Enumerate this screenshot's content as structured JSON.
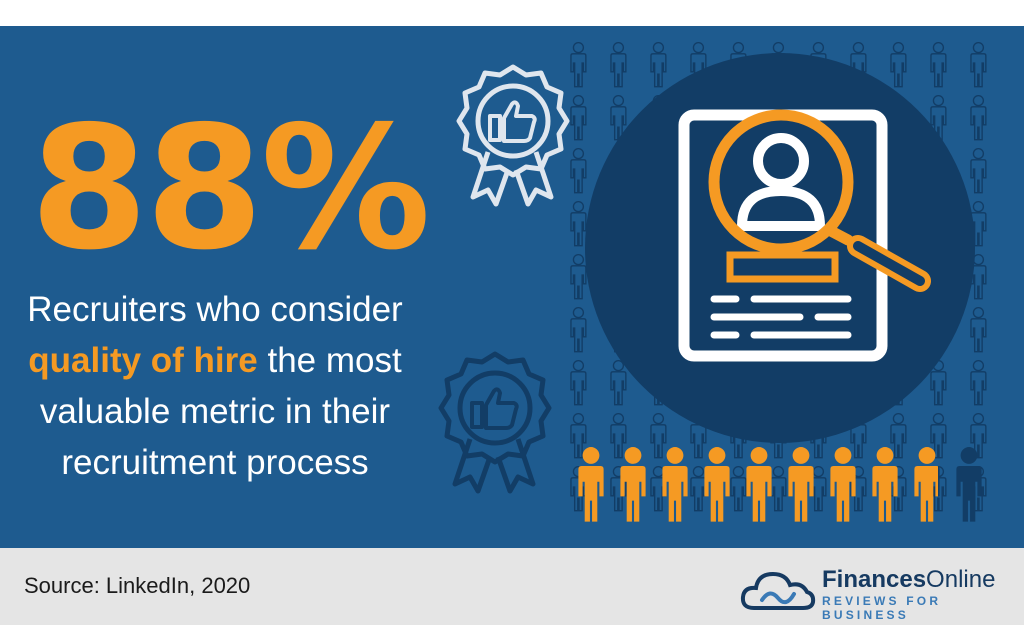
{
  "stat": {
    "value": "88%"
  },
  "description": {
    "line1": "Recruiters who consider",
    "highlight": "quality of hire",
    "line2_rest": " the most",
    "line3": "valuable metric in their",
    "line4": "recruitment process"
  },
  "people_row": {
    "highlighted_fraction": 0.88
  },
  "source": {
    "text": "Source: LinkedIn, 2020"
  },
  "logo": {
    "name_bold": "Finances",
    "name_regular": "Online",
    "tagline": "REVIEWS FOR BUSINESS"
  },
  "colors": {
    "background": "#1e5b8f",
    "accent": "#f59a23",
    "dark": "#123d66",
    "footer": "#e5e5e5"
  },
  "icons": [
    "award-ribbon-icon",
    "thumbs-up-icon",
    "resume-icon",
    "magnifier-icon",
    "user-icon",
    "person-icon",
    "cloud-icon"
  ]
}
